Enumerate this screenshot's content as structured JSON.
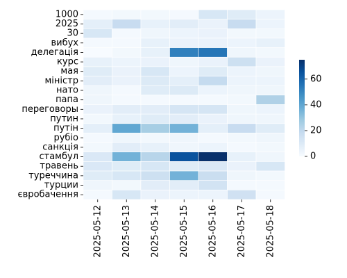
{
  "chart_data": {
    "type": "heatmap",
    "rows": [
      "1000",
      "2025",
      "30",
      "вибух",
      "делегація",
      "курс",
      "мая",
      "міністр",
      "нато",
      "папа",
      "переговоры",
      "путин",
      "путін",
      "рубіо",
      "санкція",
      "стамбул",
      "травень",
      "туреччина",
      "турции",
      "євробачення"
    ],
    "columns": [
      "2025-05-12",
      "2025-05-13",
      "2025-05-14",
      "2025-05-15",
      "2025-05-16",
      "2025-05-17",
      "2025-05-18"
    ],
    "values": [
      [
        1,
        2,
        2,
        1,
        12,
        9,
        4
      ],
      [
        7,
        18,
        6,
        8,
        5,
        18,
        4
      ],
      [
        12,
        1,
        3,
        4,
        5,
        2,
        2
      ],
      [
        1,
        1,
        6,
        5,
        5,
        4,
        6
      ],
      [
        0,
        2,
        6,
        52,
        55,
        3,
        2
      ],
      [
        6,
        4,
        5,
        3,
        5,
        16,
        5
      ],
      [
        9,
        5,
        12,
        4,
        9,
        4,
        3
      ],
      [
        8,
        5,
        10,
        7,
        19,
        4,
        4
      ],
      [
        3,
        1,
        9,
        10,
        4,
        3,
        3
      ],
      [
        3,
        1,
        1,
        1,
        1,
        2,
        24
      ],
      [
        5,
        8,
        8,
        13,
        13,
        3,
        4
      ],
      [
        2,
        6,
        9,
        8,
        5,
        3,
        3
      ],
      [
        7,
        40,
        26,
        36,
        7,
        18,
        9
      ],
      [
        1,
        3,
        2,
        3,
        1,
        2,
        3
      ],
      [
        2,
        8,
        6,
        3,
        4,
        1,
        2
      ],
      [
        11,
        36,
        22,
        65,
        75,
        6,
        3
      ],
      [
        11,
        9,
        12,
        9,
        11,
        5,
        12
      ],
      [
        9,
        12,
        16,
        36,
        17,
        3,
        2
      ],
      [
        3,
        2,
        8,
        8,
        14,
        1,
        1
      ],
      [
        1,
        12,
        5,
        4,
        4,
        15,
        1
      ]
    ],
    "colorbar": {
      "min": 0,
      "max": 75,
      "ticks": [
        0,
        20,
        40,
        60
      ]
    },
    "colormap": "Blues",
    "title": "",
    "xlabel": "",
    "ylabel": ""
  }
}
